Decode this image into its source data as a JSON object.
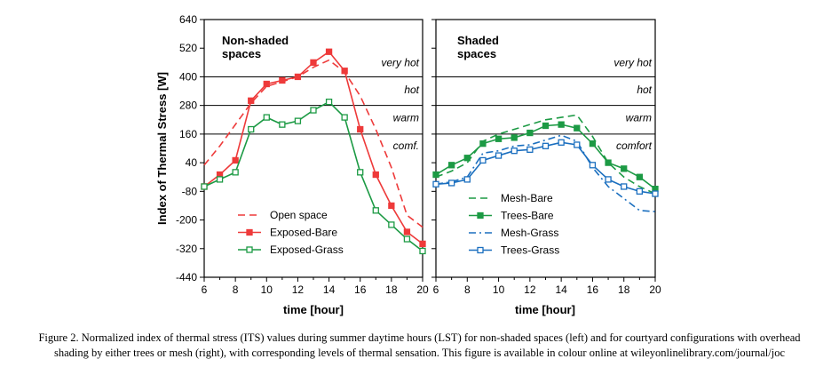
{
  "colors": {
    "red": "#ee3a3a",
    "green": "#1c9a44",
    "blue": "#1b6fbf"
  },
  "caption": "Figure 2. Normalized index of thermal stress (ITS) values during summer daytime hours (LST) for non-shaded spaces (left) and for courtyard configurations with overhead shading by either trees or mesh (right), with corresponding levels of thermal sensation. This figure is available in colour online at wileyonlinelibrary.com/journal/joc",
  "chart_data": [
    {
      "type": "line",
      "title": "Non-shaded spaces",
      "xlabel": "time [hour]",
      "ylabel": "Index  of  Thermal Stress [W]",
      "xlim": [
        6,
        20
      ],
      "ylim": [
        -440,
        640
      ],
      "xticks": [
        6,
        8,
        10,
        12,
        14,
        16,
        18,
        20
      ],
      "yticks": [
        640,
        520,
        400,
        280,
        160,
        40,
        -80,
        -200,
        -320,
        -440
      ],
      "x": [
        6,
        7,
        8,
        9,
        10,
        11,
        12,
        13,
        14,
        15,
        16,
        17,
        18,
        19,
        20
      ],
      "thresholds": [
        400,
        280,
        160
      ],
      "zones": [
        {
          "label": "very hot",
          "y": 460
        },
        {
          "label": "hot",
          "y": 345
        },
        {
          "label": "warm",
          "y": 228
        },
        {
          "label": "comf.",
          "y": 112
        }
      ],
      "legend_position": "bottom-left",
      "series": [
        {
          "name": "Open space",
          "color": "#ee3a3a",
          "dash": "8,5",
          "marker": "none",
          "values": [
            30,
            110,
            200,
            290,
            360,
            380,
            400,
            440,
            470,
            420,
            320,
            180,
            20,
            -180,
            -230
          ]
        },
        {
          "name": "Exposed-Bare",
          "color": "#ee3a3a",
          "dash": "",
          "marker": "filled",
          "values": [
            -60,
            -10,
            50,
            300,
            370,
            385,
            400,
            460,
            505,
            425,
            180,
            -10,
            -140,
            -250,
            -300
          ]
        },
        {
          "name": "Exposed-Grass",
          "color": "#1c9a44",
          "dash": "",
          "marker": "open",
          "values": [
            -60,
            -30,
            0,
            180,
            230,
            200,
            215,
            260,
            295,
            230,
            0,
            -160,
            -220,
            -280,
            -330
          ]
        }
      ]
    },
    {
      "type": "line",
      "title": "Shaded spaces",
      "xlabel": "time [hour]",
      "xlim": [
        6,
        20
      ],
      "ylim": [
        -440,
        640
      ],
      "xticks": [
        6,
        8,
        10,
        12,
        14,
        16,
        18,
        20
      ],
      "x": [
        6,
        7,
        8,
        9,
        10,
        11,
        12,
        13,
        14,
        15,
        16,
        17,
        18,
        19,
        20
      ],
      "thresholds": [
        400,
        280,
        160
      ],
      "zones": [
        {
          "label": "very hot",
          "y": 460
        },
        {
          "label": "hot",
          "y": 345
        },
        {
          "label": "warm",
          "y": 228
        },
        {
          "label": "comfort",
          "y": 112
        }
      ],
      "legend_position": "bottom-left",
      "series": [
        {
          "name": "Mesh-Bare",
          "color": "#1c9a44",
          "dash": "8,5",
          "marker": "none",
          "values": [
            -20,
            5,
            40,
            130,
            160,
            180,
            200,
            220,
            230,
            240,
            150,
            40,
            -20,
            -60,
            -90
          ]
        },
        {
          "name": "Trees-Bare",
          "color": "#1c9a44",
          "dash": "",
          "marker": "filled",
          "values": [
            -10,
            30,
            60,
            120,
            140,
            145,
            165,
            195,
            200,
            185,
            120,
            40,
            15,
            -20,
            -70
          ]
        },
        {
          "name": "Mesh-Grass",
          "color": "#1b6fbf",
          "dash": "8,4,2,4",
          "marker": "none",
          "values": [
            -50,
            -40,
            -20,
            80,
            90,
            110,
            115,
            135,
            155,
            130,
            20,
            -60,
            -110,
            -160,
            -165
          ]
        },
        {
          "name": "Trees-Grass",
          "color": "#1b6fbf",
          "dash": "",
          "marker": "open",
          "values": [
            -50,
            -45,
            -30,
            50,
            70,
            90,
            95,
            110,
            125,
            115,
            30,
            -30,
            -60,
            -80,
            -90
          ]
        }
      ]
    }
  ]
}
